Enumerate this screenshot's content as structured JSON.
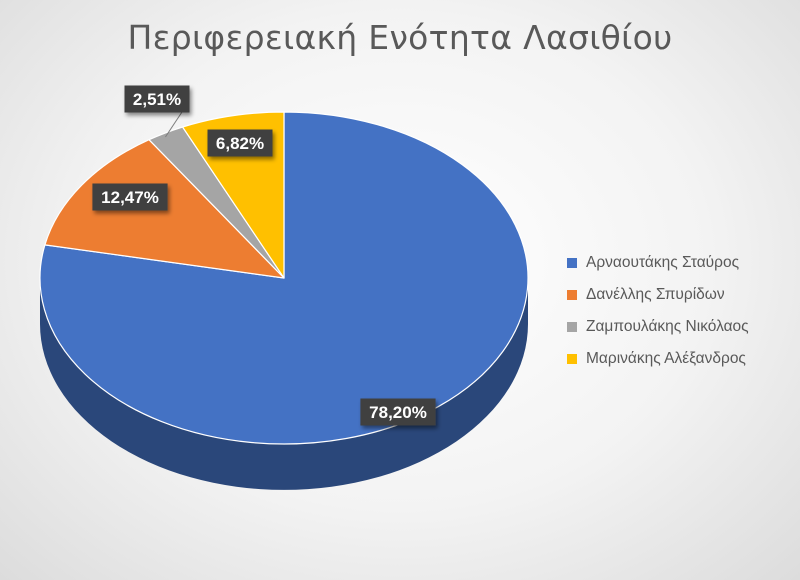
{
  "chart_data": {
    "type": "pie",
    "title": "Περιφερειακή Ενότητα Λασιθίου",
    "categories": [
      "Αρναουτάκης Σταύρος",
      "Δανέλλης Σπυρίδων",
      "Ζαμπουλάκης Νικόλαος",
      "Μαρινάκης Αλέξανδρος"
    ],
    "values": [
      78.2,
      12.47,
      2.51,
      6.82
    ],
    "labels": [
      "78,20%",
      "12,47%",
      "2,51%",
      "6,82%"
    ],
    "colors": [
      "#4472c4",
      "#ed7d31",
      "#a5a5a5",
      "#ffc000"
    ],
    "legend_position": "right",
    "style": "3d-pie"
  }
}
